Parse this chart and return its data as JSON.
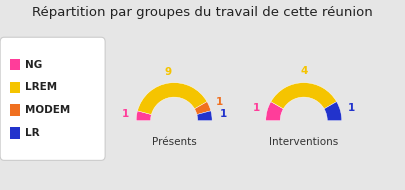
{
  "title": "Répartition par groupes du travail de cette réunion",
  "title_fontsize": 9.5,
  "background_color": "#e6e6e6",
  "legend_bg": "#ffffff",
  "groups": [
    "NG",
    "LREM",
    "MODEM",
    "LR"
  ],
  "colors": [
    "#ff3d9a",
    "#f5c400",
    "#f07020",
    "#2233cc"
  ],
  "chart1_label": "Présents",
  "chart1_values": [
    1,
    9,
    1,
    1
  ],
  "chart2_label": "Interventions",
  "chart2_values": [
    1,
    4,
    0,
    1
  ]
}
